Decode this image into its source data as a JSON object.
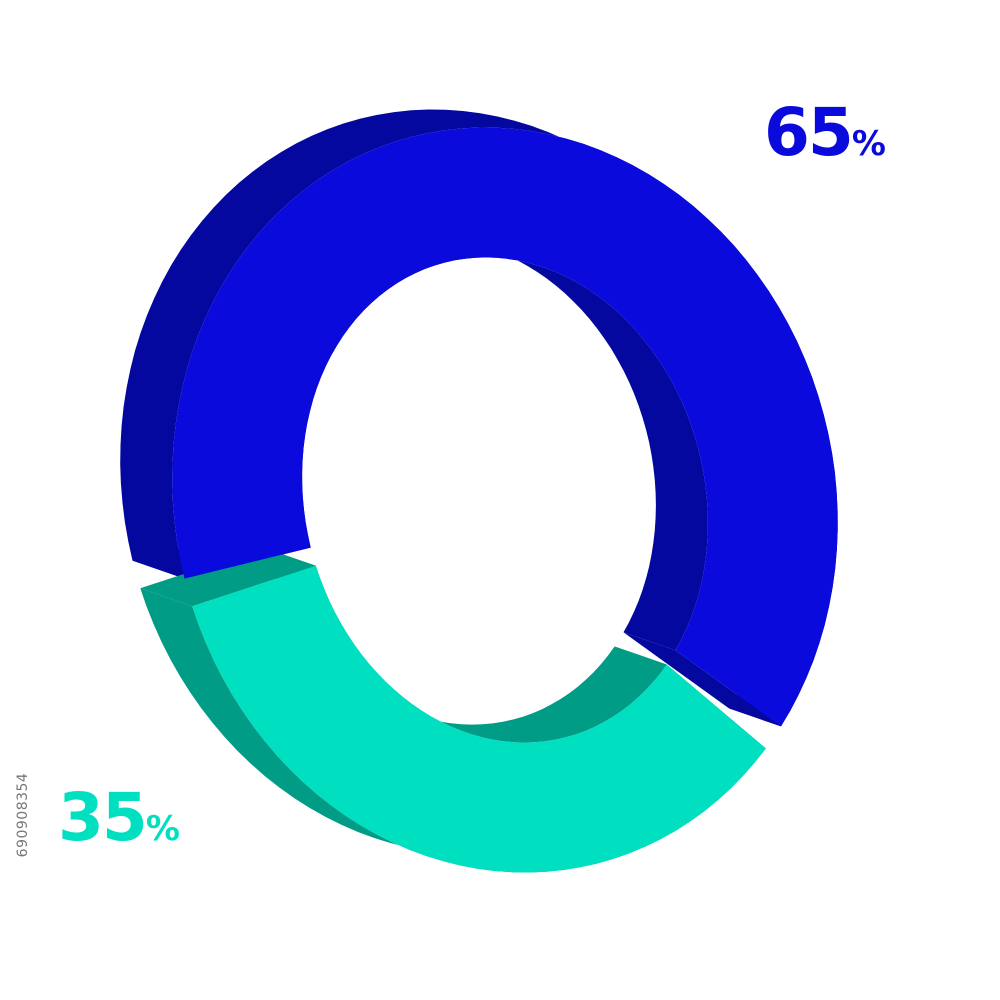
{
  "chart_data": {
    "type": "pie",
    "style": "3d-donut",
    "title": "",
    "legend": false,
    "categories": [
      "65%",
      "35%"
    ],
    "values": [
      65,
      35
    ],
    "labels": [
      {
        "number": "65",
        "sign": "%"
      },
      {
        "number": "35",
        "sign": "%"
      }
    ],
    "colors": {
      "primary": {
        "top": "#0a0adc",
        "side": "#04089f"
      },
      "secondary": {
        "top": "#00e0c0",
        "side": "#009c86"
      }
    }
  },
  "image_id_text": "690908354"
}
